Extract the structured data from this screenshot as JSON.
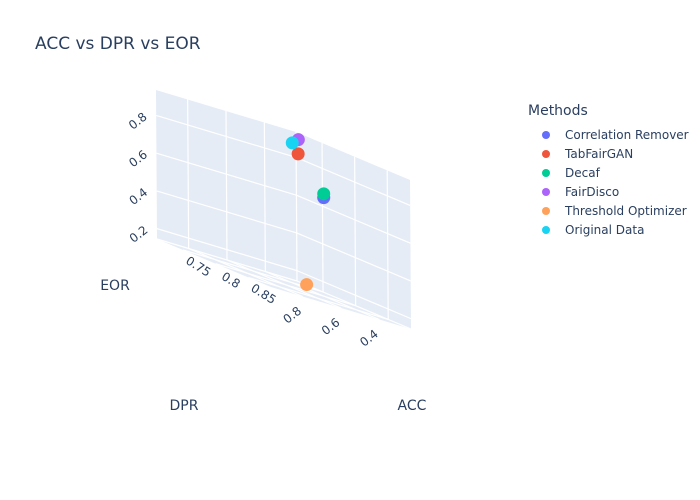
{
  "chart_data": {
    "type": "scatter3d",
    "title": "ACC vs DPR vs EOR",
    "xlabel": "ACC",
    "ylabel": "DPR",
    "zlabel": "EOR",
    "xlim": [
      0.71,
      0.885
    ],
    "ylim": [
      0.235,
      0.965
    ],
    "zlim": [
      0.145,
      0.935
    ],
    "xticks": [
      "0.75",
      "0.8",
      "0.85"
    ],
    "yticks": [
      "0.4",
      "0.6",
      "0.8"
    ],
    "zticks": [
      "0.2",
      "0.4",
      "0.6",
      "0.8"
    ],
    "legend_title": "Methods",
    "legend_position": "right",
    "series": [
      {
        "name": "Correlation Remover",
        "color": "#636efa",
        "x": 0.78,
        "y": 0.33,
        "z": 0.66
      },
      {
        "name": "TabFairGAN",
        "color": "#ef553b",
        "x": 0.8,
        "y": 0.53,
        "z": 0.86
      },
      {
        "name": "Decaf",
        "color": "#00cc96",
        "x": 0.78,
        "y": 0.33,
        "z": 0.68
      },
      {
        "name": "FairDisco",
        "color": "#ab63fa",
        "x": 0.715,
        "y": 0.24,
        "z": 0.9
      },
      {
        "name": "Threshold Optimizer",
        "color": "#FFA15A",
        "x": 0.85,
        "y": 0.66,
        "z": 0.2
      },
      {
        "name": "Original Data",
        "color": "#19d3f3",
        "x": 0.85,
        "y": 0.73,
        "z": 0.93
      }
    ]
  }
}
